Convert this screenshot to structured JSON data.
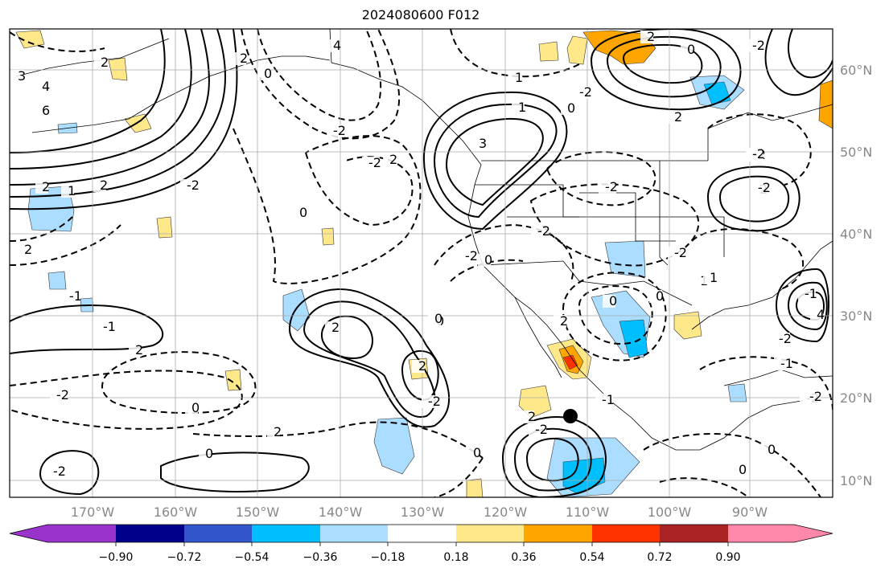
{
  "title": "2024080600 F012",
  "lon_labels": [
    "170°W",
    "160°W",
    "150°W",
    "140°W",
    "130°W",
    "120°W",
    "110°W",
    "100°W",
    "90°W"
  ],
  "lat_labels": [
    "60°N",
    "50°N",
    "40°N",
    "30°N",
    "20°N",
    "10°N"
  ],
  "colorbar": {
    "colors": [
      "#9933cc",
      "#00008b",
      "#3355cc",
      "#00bfff",
      "#aaddff",
      "#ffffff",
      "#ffe88a",
      "#ffa500",
      "#ff3300",
      "#aa2222",
      "#ff88aa"
    ],
    "tick_labels": [
      "−0.90",
      "−0.72",
      "−0.54",
      "−0.36",
      "−0.18",
      "0.18",
      "0.36",
      "0.54",
      "0.72",
      "0.90"
    ]
  },
  "contour_labels": [
    "3",
    "4",
    "6",
    "2",
    "1",
    "-2",
    "0",
    "-1",
    "4",
    "2",
    "1",
    "3",
    "0",
    "-2",
    "2",
    "0",
    "-2",
    "2",
    "1",
    "-2",
    "2",
    "0",
    "-2",
    "-2",
    "2",
    "-2",
    "-2",
    "0",
    "2",
    "-1",
    "4",
    "-1",
    "2",
    "-2",
    "2",
    "0",
    "-2",
    "2",
    "0",
    "-2",
    "0",
    "1",
    "-1",
    "1",
    "0",
    "0",
    "0",
    "2",
    "-2",
    "-2",
    "2",
    "-2",
    "2",
    "-1",
    "-2",
    "2",
    "2",
    "0",
    "-2",
    "-2",
    "-2",
    "0",
    "-2",
    "0"
  ],
  "colors": {
    "frame": "#000000",
    "grid": "#aaaaaa",
    "tick_label": "#888888",
    "positive_light": "#ffe88a",
    "positive_mid": "#ffa500",
    "positive_strong": "#ff3300",
    "negative_light": "#aaddff",
    "negative_mid": "#00bfff"
  }
}
